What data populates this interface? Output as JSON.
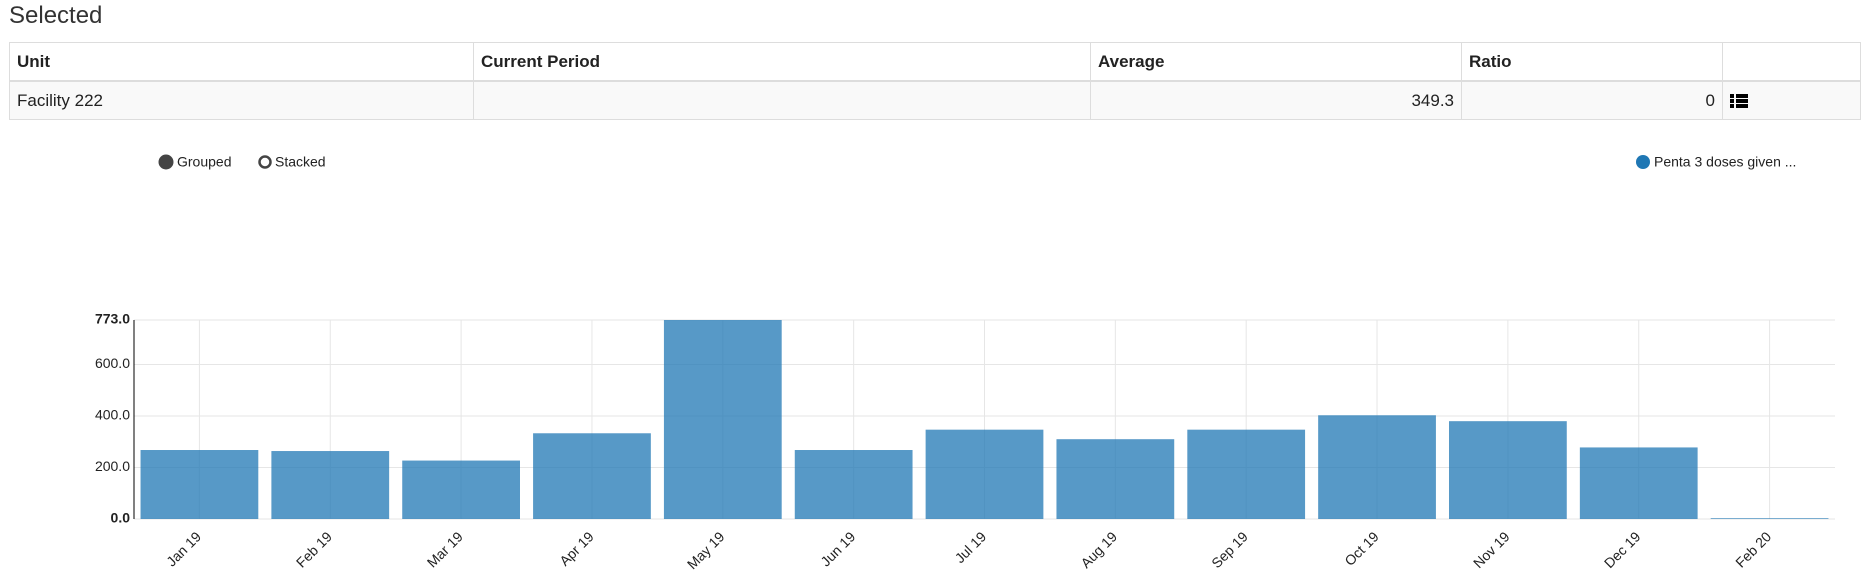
{
  "header": {
    "title": "Selected"
  },
  "table": {
    "columns": [
      "Unit",
      "Current Period",
      "Average",
      "Ratio"
    ],
    "rows": [
      {
        "unit": "Facility 222",
        "average": 349.3,
        "ratio": 0
      }
    ]
  },
  "controls": {
    "modes": [
      "Grouped",
      "Stacked"
    ]
  },
  "chart_data": {
    "type": "bar",
    "categories": [
      "Jan 19",
      "Feb 19",
      "Mar 19",
      "Apr 19",
      "May 19",
      "Jun 19",
      "Jul 19",
      "Aug 19",
      "Sep 19",
      "Oct 19",
      "Nov 19",
      "Dec 19",
      "Feb 20"
    ],
    "series": [
      {
        "name": "Penta 3 doses given ...",
        "color": "#1f77b4",
        "values": [
          268,
          264,
          227,
          333,
          773,
          268,
          347,
          310,
          347,
          403,
          380,
          278,
          3
        ]
      }
    ],
    "ylim": [
      0,
      773
    ],
    "yticks": [
      {
        "value": 0,
        "label": "0.0"
      },
      {
        "value": 200,
        "label": "200.0"
      },
      {
        "value": 400,
        "label": "400.0"
      },
      {
        "value": 600,
        "label": "600.0"
      },
      {
        "value": 773,
        "label": "773.0"
      }
    ],
    "grid": true,
    "legend": "top-right"
  }
}
